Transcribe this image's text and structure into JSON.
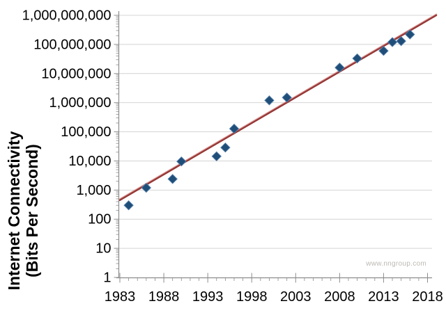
{
  "watermark": {
    "text": "www.nngroup.com"
  },
  "chart_data": {
    "type": "scatter",
    "title": "",
    "ylabel": "Internet Connectivity (Bits Per Second)",
    "ylabel_line1": "Internet Connectivity",
    "ylabel_line2": "(Bits Per Second)",
    "xlabel": "",
    "y_scale": "log",
    "y_range": [
      1,
      1000000000
    ],
    "x_range": [
      1983,
      2018.6
    ],
    "grid": "horizontal-decade-gridlines-only",
    "legend": "none",
    "x_ticks": [
      "1983",
      "1988",
      "1993",
      "1998",
      "2003",
      "2008",
      "2013",
      "2018"
    ],
    "x_minor_tick_interval_years": 1,
    "y_ticks": [
      {
        "value": 1,
        "label": "1"
      },
      {
        "value": 10,
        "label": "10"
      },
      {
        "value": 100,
        "label": "100"
      },
      {
        "value": 1000,
        "label": "1,000"
      },
      {
        "value": 10000,
        "label": "10,000"
      },
      {
        "value": 100000,
        "label": "100,000"
      },
      {
        "value": 1000000,
        "label": "1,000,000"
      },
      {
        "value": 10000000,
        "label": "10,000,000"
      },
      {
        "value": 100000000,
        "label": "100,000,000"
      },
      {
        "value": 1000000000,
        "label": "1,000,000,000"
      }
    ],
    "points": [
      {
        "year": 1984,
        "bps": 300
      },
      {
        "year": 1986,
        "bps": 1200
      },
      {
        "year": 1989,
        "bps": 2400
      },
      {
        "year": 1990,
        "bps": 9600
      },
      {
        "year": 1994,
        "bps": 14400
      },
      {
        "year": 1995,
        "bps": 28800
      },
      {
        "year": 1996,
        "bps": 128000
      },
      {
        "year": 2000,
        "bps": 1200000
      },
      {
        "year": 2002,
        "bps": 1500000
      },
      {
        "year": 2008,
        "bps": 16000000
      },
      {
        "year": 2010,
        "bps": 33000000
      },
      {
        "year": 2013,
        "bps": 60000000
      },
      {
        "year": 2014,
        "bps": 120000000
      },
      {
        "year": 2015,
        "bps": 130000000
      },
      {
        "year": 2016,
        "bps": 220000000
      }
    ],
    "trendline": {
      "start_year": 1983,
      "start_bps": 450,
      "end_year": 2019,
      "end_bps": 1000000000
    },
    "colors": {
      "marker": "#1F4E79",
      "marker_edge": "#5B83AD",
      "trend": "#953735",
      "trend_highlight": "#D99694",
      "grid": "#D4D4D4",
      "axis": "#8C8C8C",
      "tick_text": "#000000",
      "watermark": "#BDB9B3"
    }
  }
}
